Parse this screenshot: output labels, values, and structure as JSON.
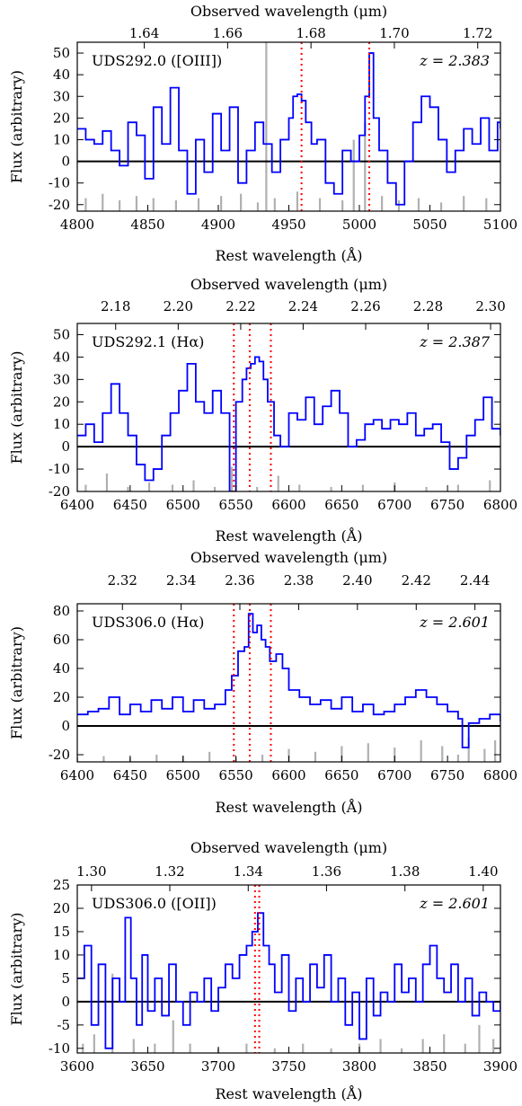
{
  "chart_data": [
    {
      "type": "line",
      "panel_label": "UDS292.0 ([OIII])",
      "redshift_label": "z = 2.383",
      "xlabel": "Rest wavelength (Å)",
      "ylabel": "Flux (arbitrary)",
      "top_xlabel": "Observed wavelength (μm)",
      "xlim": [
        4800,
        5100
      ],
      "ylim": [
        -23,
        55
      ],
      "x_ticks": [
        4800,
        4850,
        4900,
        4950,
        5000,
        5050,
        5100
      ],
      "y_ticks": [
        -20,
        -10,
        0,
        10,
        20,
        30,
        40,
        50
      ],
      "top_ticks": [
        "1.64",
        "1.66",
        "1.68",
        "1.70",
        "1.72"
      ],
      "top_tick_rest": [
        4847.5,
        4906.6,
        4965.7,
        5024.8,
        5083.9
      ],
      "line_markers": [
        4959,
        5007
      ],
      "colors": {
        "spectrum": "#0000ff",
        "noise": "#b0b0b0",
        "markers": "#ff0000",
        "zero": "#000000"
      },
      "series": [
        {
          "values_x": [
            4800,
            4806,
            4812,
            4818,
            4824,
            4830,
            4836,
            4842,
            4848,
            4854,
            4860,
            4866,
            4872,
            4878,
            4884,
            4890,
            4896,
            4902,
            4908,
            4914,
            4920,
            4926,
            4932,
            4938,
            4944,
            4950,
            4953,
            4956,
            4959,
            4962,
            4966,
            4970,
            4976,
            4982,
            4988,
            4994,
            5000,
            5004,
            5007,
            5010,
            5014,
            5020,
            5026,
            5032,
            5038,
            5044,
            5050,
            5056,
            5062,
            5068,
            5074,
            5080,
            5086,
            5092,
            5098,
            5100
          ],
          "values_y": [
            15,
            10,
            8,
            14,
            5,
            -2,
            18,
            12,
            -8,
            25,
            8,
            34,
            5,
            -15,
            10,
            -5,
            22,
            5,
            25,
            -10,
            5,
            18,
            8,
            -5,
            10,
            20,
            30,
            31,
            28,
            18,
            8,
            10,
            -10,
            -15,
            5,
            0,
            12,
            30,
            50,
            20,
            5,
            -10,
            -20,
            0,
            18,
            30,
            25,
            10,
            -5,
            5,
            15,
            8,
            20,
            5,
            18,
            15
          ]
        },
        {
          "values_x": [
            4806,
            4818,
            4830,
            4842,
            4854,
            4870,
            4886,
            4902,
            4916,
            4928,
            4934,
            4940,
            4956,
            4972,
            4988,
            4996,
            5004,
            5016,
            5028,
            5042,
            5058,
            5074,
            5090
          ],
          "values_y": [
            -17,
            -15,
            -18,
            -16,
            -17,
            -18,
            -17,
            -16,
            -15,
            -19,
            55,
            -17,
            -14,
            -17,
            -18,
            10,
            18,
            -16,
            -18,
            -17,
            -19,
            -16,
            -17
          ]
        }
      ]
    },
    {
      "type": "line",
      "panel_label": "UDS292.1 (Hα)",
      "redshift_label": "z = 2.387",
      "xlabel": "Rest wavelength (Å)",
      "ylabel": "Flux (arbitrary)",
      "top_xlabel": "Observed wavelength (μm)",
      "xlim": [
        6400,
        6800
      ],
      "ylim": [
        -20,
        55
      ],
      "x_ticks": [
        6400,
        6450,
        6500,
        6550,
        6600,
        6650,
        6700,
        6750,
        6800
      ],
      "y_ticks": [
        -20,
        -10,
        0,
        10,
        20,
        30,
        40,
        50
      ],
      "top_ticks": [
        "2.18",
        "2.20",
        "2.22",
        "2.24",
        "2.26",
        "2.28",
        "2.30"
      ],
      "top_tick_rest": [
        6436.3,
        6495.4,
        6554.5,
        6613.5,
        6672.6,
        6731.6,
        6790.7
      ],
      "line_markers": [
        6548,
        6563,
        6583
      ],
      "colors": {
        "spectrum": "#0000ff",
        "noise": "#b0b0b0",
        "markers": "#ff0000",
        "zero": "#000000"
      },
      "series": [
        {
          "values_x": [
            6400,
            6408,
            6416,
            6424,
            6432,
            6440,
            6448,
            6456,
            6464,
            6472,
            6480,
            6488,
            6496,
            6504,
            6512,
            6520,
            6528,
            6536,
            6544,
            6550,
            6556,
            6560,
            6564,
            6568,
            6572,
            6576,
            6580,
            6586,
            6592,
            6600,
            6608,
            6616,
            6624,
            6632,
            6640,
            6648,
            6656,
            6664,
            6672,
            6680,
            6688,
            6696,
            6704,
            6712,
            6720,
            6728,
            6736,
            6744,
            6752,
            6760,
            6768,
            6776,
            6784,
            6792,
            6800
          ],
          "values_y": [
            5,
            10,
            2,
            15,
            28,
            15,
            5,
            -8,
            -15,
            -10,
            5,
            15,
            25,
            37,
            20,
            15,
            25,
            15,
            -20,
            20,
            30,
            35,
            37,
            40,
            38,
            30,
            20,
            5,
            0,
            15,
            12,
            22,
            10,
            18,
            25,
            15,
            0,
            3,
            10,
            12,
            8,
            12,
            10,
            15,
            5,
            8,
            10,
            2,
            -10,
            -5,
            5,
            12,
            22,
            8,
            5
          ]
        },
        {
          "values_x": [
            6408,
            6428,
            6448,
            6468,
            6490,
            6510,
            6530,
            6546,
            6570,
            6590,
            6610,
            6640,
            6670,
            6700,
            6730,
            6760,
            6790
          ],
          "values_y": [
            -17,
            -12,
            -18,
            -16,
            -17,
            -15,
            -18,
            -9,
            -18,
            -13,
            -17,
            -18,
            -17,
            -16,
            -18,
            -17,
            -15
          ]
        }
      ]
    },
    {
      "type": "line",
      "panel_label": "UDS306.0 (Hα)",
      "redshift_label": "z = 2.601",
      "xlabel": "Rest wavelength (Å)",
      "ylabel": "Flux (arbitrary)",
      "top_xlabel": "Observed wavelength (μm)",
      "xlim": [
        6400,
        6800
      ],
      "ylim": [
        -25,
        85
      ],
      "x_ticks": [
        6400,
        6450,
        6500,
        6550,
        6600,
        6650,
        6700,
        6750,
        6800
      ],
      "y_ticks": [
        -20,
        0,
        20,
        40,
        60,
        80
      ],
      "top_ticks": [
        "2.32",
        "2.34",
        "2.36",
        "2.38",
        "2.40",
        "2.42",
        "2.44"
      ],
      "top_tick_rest": [
        6442.7,
        6498.2,
        6553.7,
        6609.3,
        6664.8,
        6720.4,
        6775.9
      ],
      "line_markers": [
        6548,
        6563,
        6583
      ],
      "colors": {
        "spectrum": "#0000ff",
        "noise": "#b0b0b0",
        "markers": "#ff0000",
        "zero": "#000000"
      },
      "series": [
        {
          "values_x": [
            6400,
            6410,
            6420,
            6430,
            6440,
            6450,
            6460,
            6470,
            6480,
            6490,
            6500,
            6510,
            6520,
            6530,
            6540,
            6546,
            6552,
            6558,
            6562,
            6566,
            6570,
            6574,
            6578,
            6582,
            6588,
            6594,
            6600,
            6610,
            6620,
            6630,
            6640,
            6650,
            6660,
            6670,
            6680,
            6690,
            6700,
            6710,
            6720,
            6730,
            6740,
            6750,
            6760,
            6764,
            6770,
            6780,
            6790,
            6800
          ],
          "values_y": [
            8,
            10,
            12,
            20,
            8,
            15,
            10,
            18,
            12,
            20,
            10,
            18,
            12,
            15,
            25,
            35,
            52,
            55,
            78,
            65,
            70,
            60,
            55,
            45,
            50,
            40,
            25,
            20,
            15,
            18,
            12,
            20,
            10,
            15,
            8,
            10,
            15,
            20,
            25,
            20,
            15,
            10,
            5,
            -15,
            2,
            5,
            8,
            3
          ]
        },
        {
          "values_x": [
            6400,
            6425,
            6450,
            6475,
            6500,
            6525,
            6550,
            6575,
            6600,
            6625,
            6650,
            6675,
            6700,
            6725,
            6745,
            6760,
            6770,
            6785,
            6795
          ],
          "values_y": [
            -22,
            -21,
            -22,
            -20,
            -21,
            -18,
            -22,
            -20,
            -16,
            -18,
            -14,
            -12,
            -15,
            -10,
            -14,
            -20,
            -8,
            -16,
            -10
          ]
        }
      ]
    },
    {
      "type": "line",
      "panel_label": "UDS306.0 ([OII])",
      "redshift_label": "z = 2.601",
      "xlabel": "Rest wavelength (Å)",
      "ylabel": "Flux (arbitrary)",
      "top_xlabel": "Observed wavelength (μm)",
      "xlim": [
        3600,
        3900
      ],
      "ylim": [
        -11,
        25
      ],
      "x_ticks": [
        3600,
        3650,
        3700,
        3750,
        3800,
        3850,
        3900
      ],
      "y_ticks": [
        -10,
        -5,
        0,
        5,
        10,
        15,
        20,
        25
      ],
      "top_ticks": [
        "1.30",
        "1.32",
        "1.34",
        "1.36",
        "1.38",
        "1.40"
      ],
      "top_tick_rest": [
        3610.1,
        3665.6,
        3721.2,
        3776.7,
        3832.3,
        3887.8
      ],
      "line_markers": [
        3726,
        3729
      ],
      "colors": {
        "spectrum": "#0000ff",
        "noise": "#b0b0b0",
        "markers": "#ff0000",
        "zero": "#000000"
      },
      "series": [
        {
          "values_x": [
            3600,
            3605,
            3610,
            3615,
            3620,
            3625,
            3630,
            3634,
            3638,
            3642,
            3646,
            3650,
            3655,
            3660,
            3665,
            3670,
            3675,
            3680,
            3685,
            3690,
            3695,
            3700,
            3705,
            3710,
            3715,
            3720,
            3724,
            3728,
            3732,
            3736,
            3740,
            3745,
            3750,
            3755,
            3760,
            3765,
            3770,
            3775,
            3780,
            3785,
            3790,
            3795,
            3800,
            3805,
            3810,
            3815,
            3820,
            3825,
            3830,
            3835,
            3840,
            3845,
            3850,
            3855,
            3860,
            3865,
            3870,
            3875,
            3880,
            3885,
            3890,
            3895,
            3900
          ],
          "values_y": [
            5,
            12,
            -5,
            8,
            -10,
            5,
            0,
            18,
            5,
            -5,
            10,
            -2,
            5,
            -3,
            8,
            0,
            -5,
            2,
            0,
            5,
            -2,
            3,
            8,
            5,
            10,
            12,
            15,
            19,
            12,
            8,
            2,
            10,
            -2,
            5,
            0,
            8,
            3,
            10,
            0,
            5,
            -5,
            2,
            -8,
            5,
            -3,
            2,
            0,
            8,
            2,
            5,
            0,
            8,
            12,
            5,
            2,
            8,
            0,
            5,
            -3,
            2,
            0,
            -2,
            0
          ]
        },
        {
          "values_x": [
            3604,
            3612,
            3625,
            3640,
            3655,
            3668,
            3680,
            3700,
            3720,
            3740,
            3760,
            3780,
            3800,
            3815,
            3830,
            3845,
            3860,
            3875,
            3885,
            3895
          ],
          "values_y": [
            -9,
            -7,
            6,
            -8,
            -9,
            -4,
            -9,
            -10,
            -9,
            -10,
            -9,
            -10,
            -9,
            -8,
            -10,
            -8,
            -7,
            -9,
            -5,
            -8
          ]
        }
      ]
    }
  ]
}
